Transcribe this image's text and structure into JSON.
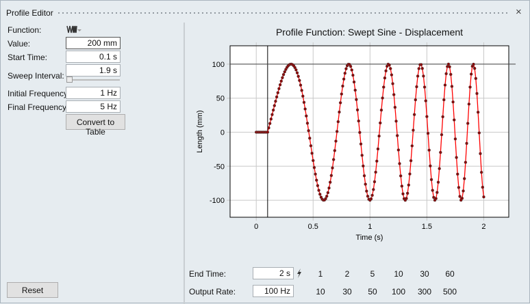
{
  "window": {
    "title": "Profile Editor",
    "close": "×"
  },
  "form": {
    "function_label": "Function:",
    "function_icon": "swept-sine-icon",
    "value_label": "Value:",
    "value": "200 mm",
    "start_time_label": "Start Time:",
    "start_time": "0.1 s",
    "sweep_interval_label": "Sweep Interval:",
    "sweep_interval": "1.9 s",
    "sweep_slider_fraction": 0,
    "initial_freq_label": "Initial Frequency:",
    "initial_freq": "1 Hz",
    "final_freq_label": "Final Frequency:",
    "final_freq": "5 Hz",
    "convert_label": "Convert to Table",
    "reset_label": "Reset"
  },
  "bottom": {
    "end_time_label": "End Time:",
    "end_time": "2 s",
    "end_time_options": [
      "1",
      "2",
      "5",
      "10",
      "30",
      "60"
    ],
    "output_rate_label": "Output Rate:",
    "output_rate": "100 Hz",
    "output_rate_options": [
      "10",
      "30",
      "50",
      "100",
      "300",
      "500"
    ]
  },
  "chart_data": {
    "type": "line",
    "title": "Profile Function: Swept Sine - Displacement",
    "xlabel": "Time (s)",
    "ylabel": "Length (mm)",
    "xlim": [
      -0.23,
      2.22
    ],
    "ylim": [
      -125,
      127
    ],
    "xticks": [
      "0",
      "0.5",
      "1",
      "1.5",
      "2"
    ],
    "yticks": [
      "100",
      "50",
      "0",
      "-50",
      "-100"
    ],
    "grid": true,
    "line_color": "#ff0000",
    "marker_color": "#8b0000",
    "signal": {
      "amplitude": 100,
      "start_time": 0.1,
      "sweep_interval": 1.9,
      "f0": 1,
      "f1": 5,
      "sample_rate": 100,
      "end_time": 2
    },
    "reference_lines": {
      "vertical_x": 0.1,
      "horizontal_y": 100
    }
  }
}
